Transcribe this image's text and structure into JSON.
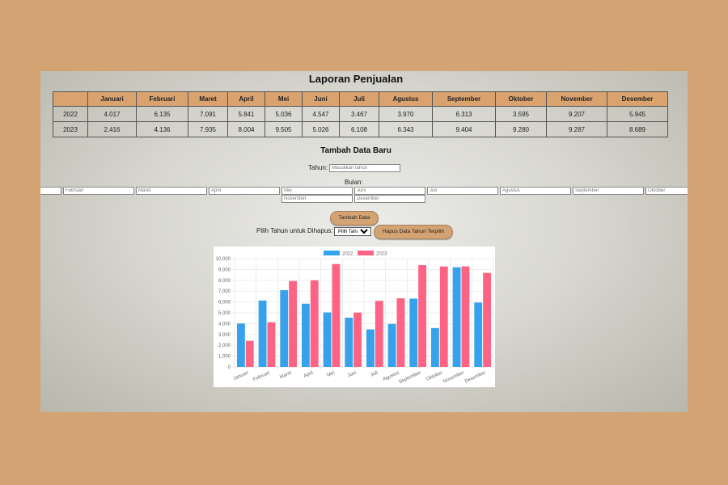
{
  "header": {
    "title": "Laporan Penjualan"
  },
  "table": {
    "columns": [
      "Januari",
      "Februari",
      "Maret",
      "April",
      "Mei",
      "Juni",
      "Juli",
      "Agustus",
      "September",
      "Oktober",
      "November",
      "Desember"
    ],
    "rows": [
      {
        "year": "2022",
        "cells": [
          "4.017",
          "6.135",
          "7.091",
          "5.841",
          "5.036",
          "4.547",
          "3.467",
          "3.970",
          "6.313",
          "3.595",
          "9.207",
          "5.945"
        ]
      },
      {
        "year": "2023",
        "cells": [
          "2.416",
          "4.136",
          "7.935",
          "8.004",
          "9.505",
          "5.026",
          "6.108",
          "6.343",
          "9.404",
          "9.280",
          "9.287",
          "8.689"
        ]
      }
    ]
  },
  "form": {
    "title": "Tambah Data Baru",
    "year_label": "Tahun:",
    "year_placeholder": "Masukkan tahun",
    "month_label": "Bulan:",
    "month_placeholders": [
      "Februari",
      "Maret",
      "April",
      "Mei",
      "Juni",
      "Juli",
      "Agustus",
      "September",
      "Oktober",
      "November",
      "Desember"
    ],
    "add_button": "Tambah Data",
    "delete_label": "Pilih Tahun untuk Dihapus:",
    "select_placeholder": "Pilih Tahun",
    "delete_button": "Hapus Data Tahun Terpilih"
  },
  "chart_data": {
    "type": "bar",
    "categories": [
      "Januari",
      "Februari",
      "Maret",
      "April",
      "Mei",
      "Juni",
      "Juli",
      "Agustus",
      "September",
      "Oktober",
      "November",
      "Desember"
    ],
    "series": [
      {
        "name": "2022",
        "color": "#36a2eb",
        "values": [
          4017,
          6135,
          7091,
          5841,
          5036,
          4547,
          3467,
          3970,
          6313,
          3595,
          9207,
          5945
        ]
      },
      {
        "name": "2023",
        "color": "#ff6384",
        "values": [
          2416,
          4136,
          7935,
          8004,
          9505,
          5026,
          6108,
          6343,
          9404,
          9280,
          9287,
          8689
        ]
      }
    ],
    "ylim": [
      0,
      10000
    ],
    "yticks": [
      0,
      {
        "value": 1000,
        "label": "1,000"
      },
      {
        "value": 2000,
        "label": "2,000"
      },
      {
        "value": 3000,
        "label": "3,000"
      },
      {
        "value": 4000,
        "label": "4,000"
      },
      {
        "value": 5000,
        "label": "5,000"
      },
      {
        "value": 6000,
        "label": "6,000"
      },
      {
        "value": 7000,
        "label": "7,000"
      },
      {
        "value": 8000,
        "label": "8,000"
      },
      {
        "value": 9000,
        "label": "9,000"
      },
      {
        "value": 10000,
        "label": "10,000"
      }
    ],
    "grid": true,
    "legend": "top"
  }
}
